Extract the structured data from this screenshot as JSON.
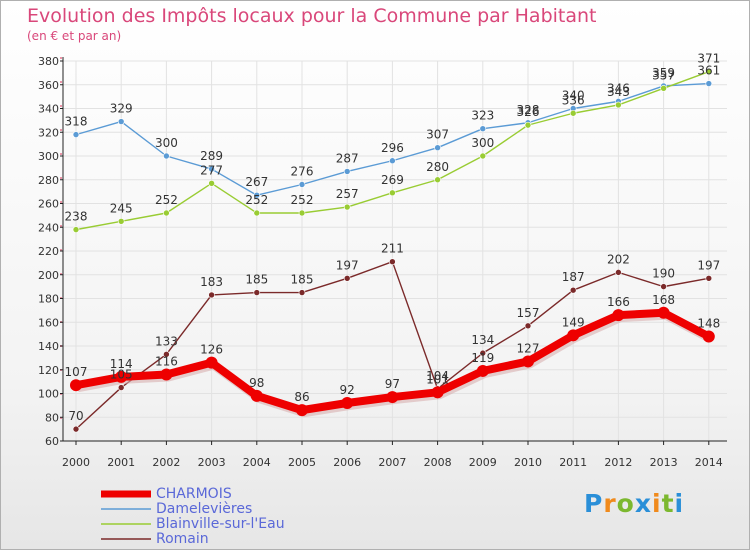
{
  "header": {
    "title": "Evolution des Impôts locaux pour la Commune par Habitant",
    "subtitle": "(en € et par an)"
  },
  "brand": {
    "logo": "Proxiti"
  },
  "chart_data": {
    "type": "line",
    "title": "Evolution des Impôts locaux pour la Commune par Habitant",
    "ylabel": "(en € et par an)",
    "xlabel": "",
    "ylim": [
      60,
      380
    ],
    "yticks": [
      60,
      80,
      100,
      120,
      140,
      160,
      180,
      200,
      220,
      240,
      260,
      280,
      300,
      320,
      340,
      360,
      380
    ],
    "grid": true,
    "legend": "bottom-left",
    "x": [
      "2000",
      "2001",
      "2002",
      "2003",
      "2004",
      "2005",
      "2006",
      "2007",
      "2008",
      "2009",
      "2010",
      "2011",
      "2012",
      "2013",
      "2014"
    ],
    "series": [
      {
        "name": "CHARMOIS",
        "color": "#ee0000",
        "values": [
          107,
          114,
          116,
          126,
          98,
          86,
          92,
          97,
          101,
          119,
          127,
          149,
          166,
          168,
          148
        ]
      },
      {
        "name": "Damelevières",
        "color": "#5b9bd5",
        "values": [
          318,
          329,
          300,
          289,
          267,
          276,
          287,
          296,
          307,
          323,
          328,
          340,
          346,
          359,
          361
        ]
      },
      {
        "name": "Blainville-sur-l'Eau",
        "color": "#99cc33",
        "values": [
          238,
          245,
          252,
          277,
          252,
          252,
          257,
          269,
          280,
          300,
          326,
          336,
          343,
          357,
          371
        ]
      },
      {
        "name": "Romain",
        "color": "#7b2a2a",
        "values": [
          70,
          105,
          133,
          183,
          185,
          185,
          197,
          211,
          104,
          134,
          157,
          187,
          202,
          190,
          197
        ]
      }
    ]
  }
}
